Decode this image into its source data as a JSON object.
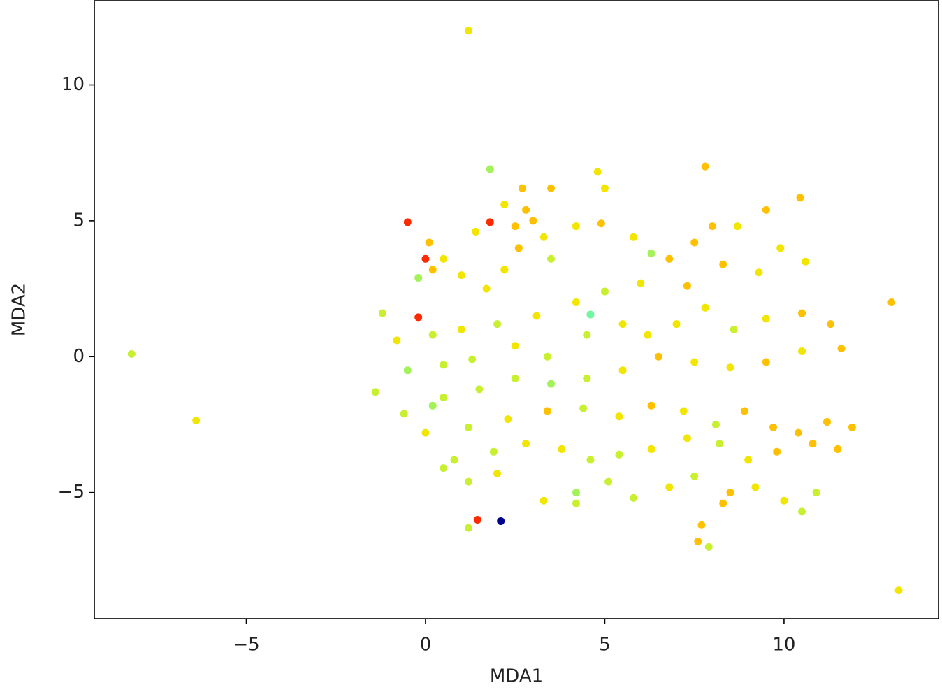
{
  "chart_data": {
    "type": "scatter",
    "x_label": "MDA1",
    "y_label": "MDA2",
    "xlim": [
      -9.24,
      14.31
    ],
    "ylim": [
      -9.64,
      13.1
    ],
    "xticks": [
      {
        "value": -5,
        "label": "−5"
      },
      0,
      5,
      10
    ],
    "yticks": [
      {
        "value": -5,
        "label": "−5"
      },
      0,
      5,
      10
    ],
    "series": [
      {
        "color": "#a4f25a",
        "x": [
          1.8,
          -0.2,
          6.3,
          -0.5,
          3.5,
          0.2,
          4.2
        ],
        "values": [
          6.9,
          2.9,
          3.8,
          -0.5,
          -1.0,
          -1.8,
          -5.0
        ]
      },
      {
        "color": "#c8f030",
        "x": [
          -8.2,
          3.5,
          5.0,
          2.0,
          0.2,
          -1.2,
          -1.4,
          0.5,
          1.3,
          3.4,
          4.5,
          8.6,
          4.5,
          2.5,
          1.5,
          0.5,
          -0.6,
          1.2,
          4.4,
          8.1,
          8.2,
          5.4,
          4.6,
          1.9,
          0.8,
          0.5,
          1.2,
          4.2,
          5.1,
          5.8,
          7.5,
          7.9,
          10.5,
          10.9,
          1.2
        ],
        "values": [
          0.1,
          3.6,
          2.4,
          1.2,
          0.8,
          1.6,
          -1.3,
          -0.3,
          -0.1,
          0.0,
          0.8,
          1.0,
          -0.8,
          -0.8,
          -1.2,
          -1.5,
          -2.1,
          -2.6,
          -1.9,
          -2.5,
          -3.2,
          -3.6,
          -3.8,
          -3.5,
          -3.8,
          -4.1,
          -4.6,
          -5.4,
          -4.6,
          -5.2,
          -4.4,
          -7.0,
          -5.7,
          -5.0,
          -6.3
        ]
      },
      {
        "color": "#f2e600",
        "x": [
          1.2,
          -6.4,
          13.2,
          4.8,
          5.0,
          2.2,
          3.3,
          1.4,
          0.5,
          1.0,
          1.7,
          2.2,
          4.2,
          5.8,
          8.7,
          9.9,
          10.6,
          9.3,
          6.0,
          4.2,
          3.1,
          1.0,
          -0.8,
          2.5,
          5.5,
          6.2,
          7.0,
          7.8,
          9.5,
          10.5,
          8.5,
          7.5,
          5.5,
          0.0,
          2.3,
          5.4,
          7.2,
          9.0,
          7.3,
          6.3,
          3.8,
          2.8,
          2.0,
          3.3,
          6.8,
          9.2,
          10.0
        ],
        "values": [
          12.0,
          -2.35,
          -8.6,
          6.8,
          6.2,
          5.6,
          4.4,
          4.6,
          3.6,
          3.0,
          2.5,
          3.2,
          4.8,
          4.4,
          4.8,
          4.0,
          3.5,
          3.1,
          2.7,
          2.0,
          1.5,
          1.0,
          0.6,
          0.4,
          1.2,
          0.8,
          1.2,
          1.8,
          1.4,
          0.2,
          -0.4,
          -0.2,
          -0.5,
          -2.8,
          -2.3,
          -2.2,
          -2.0,
          -3.8,
          -3.0,
          -3.4,
          -3.4,
          -3.2,
          -4.3,
          -5.3,
          -4.8,
          -4.8,
          -5.3
        ]
      },
      {
        "color": "#ffc000",
        "x": [
          13.0,
          7.8,
          10.45,
          2.7,
          3.5,
          2.8,
          3.0,
          2.5,
          2.6,
          0.1,
          0.2,
          4.9,
          6.8,
          7.5,
          8.0,
          9.5,
          8.3,
          7.3,
          10.5,
          11.3,
          11.6,
          9.5,
          6.5,
          3.4,
          6.3,
          8.9,
          9.7,
          10.4,
          11.2,
          11.9,
          11.5,
          10.8,
          9.8,
          8.3,
          8.5,
          7.7,
          7.6
        ],
        "values": [
          2.0,
          7.0,
          5.85,
          6.2,
          6.2,
          5.4,
          5.0,
          4.8,
          4.0,
          4.2,
          3.2,
          4.9,
          3.6,
          4.2,
          4.8,
          5.4,
          3.4,
          2.6,
          1.6,
          1.2,
          0.3,
          -0.2,
          0.0,
          -2.0,
          -1.8,
          -2.0,
          -2.6,
          -2.8,
          -2.4,
          -2.6,
          -3.4,
          -3.2,
          -3.5,
          -5.4,
          -5.0,
          -6.2,
          -6.8
        ]
      },
      {
        "color": "#70f8a0",
        "x": [
          4.6
        ],
        "values": [
          1.55
        ]
      },
      {
        "color": "#ff2a00",
        "x": [
          1.45,
          -0.5,
          1.8,
          0.0,
          -0.2
        ],
        "values": [
          -6.0,
          4.95,
          4.95,
          3.6,
          1.45
        ]
      },
      {
        "color": "#00008f",
        "x": [
          2.1
        ],
        "values": [
          -6.05
        ]
      }
    ]
  }
}
